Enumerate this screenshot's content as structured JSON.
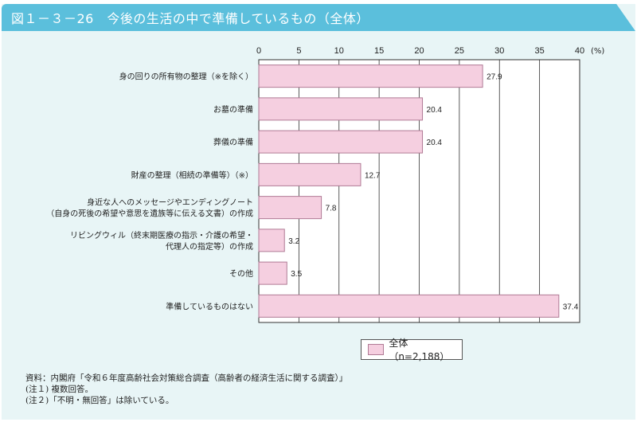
{
  "title": "図１－３－26　今後の生活の中で準備しているもの（全体）",
  "chart_data": {
    "type": "bar",
    "orientation": "horizontal",
    "categories": [
      [
        "身の回りの所有物の整理（※を除く）"
      ],
      [
        "お墓の準備"
      ],
      [
        "葬儀の準備"
      ],
      [
        "財産の整理（相続の準備等）（※）"
      ],
      [
        "身近な人へのメッセージやエンディングノート",
        "（自身の死後の希望や意思を遺族等に伝える文書）の作成"
      ],
      [
        "リビングウィル（終末期医療の指示・介護の希望・",
        "代理人の指定等）の作成"
      ],
      [
        "その他"
      ],
      [
        "準備しているものはない"
      ]
    ],
    "series": [
      {
        "name": "全体（n=2,188）",
        "values": [
          27.9,
          20.4,
          20.4,
          12.7,
          7.8,
          3.2,
          3.5,
          37.4
        ],
        "color": "#f5cfe0"
      }
    ],
    "xlim": [
      0,
      40
    ],
    "ticks": [
      "0",
      "5",
      "10",
      "15",
      "20",
      "25",
      "30",
      "35",
      "40"
    ],
    "unit_label": "(%)",
    "grid": true,
    "legend": "bottom-right"
  },
  "notes": [
    "資料：内閣府「令和６年度高齢社会対策総合調査（高齢者の経済生活に関する調査）」",
    "(注１) 複数回答。",
    "(注２)「不明・無回答」は除いている。"
  ],
  "colors": {
    "header": "#5bbfdc",
    "background": "#e8f5f6",
    "bar": "#f5cfe0",
    "bar_border": "#b07a95"
  }
}
